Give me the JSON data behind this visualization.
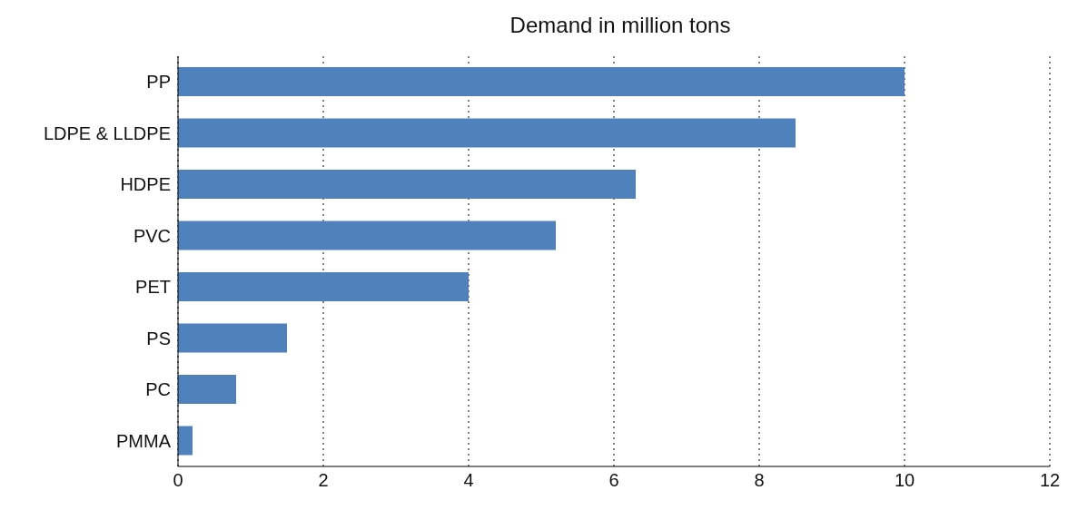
{
  "chart_data": {
    "type": "bar",
    "orientation": "horizontal",
    "title": "Demand in million tons",
    "categories": [
      "PP",
      "LDPE & LLDPE",
      "HDPE",
      "PVC",
      "PET",
      "PS",
      "PC",
      "PMMA"
    ],
    "values": [
      10,
      8.5,
      6.3,
      5.2,
      4,
      1.5,
      0.8,
      0.2
    ],
    "color": "#4f81bd",
    "xlim": [
      0,
      12
    ],
    "xticks": [
      0,
      2,
      4,
      6,
      8,
      10,
      12
    ],
    "grid": "x"
  }
}
